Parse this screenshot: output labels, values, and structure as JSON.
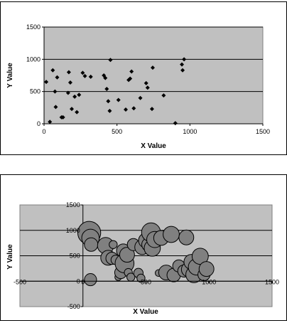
{
  "chart_data": [
    {
      "type": "scatter",
      "xlabel": "X Value",
      "ylabel": "Y Value",
      "xlim": [
        0,
        1500
      ],
      "ylim": [
        0,
        1500
      ],
      "x_ticks": [
        "0",
        "500",
        "1000",
        "1500"
      ],
      "y_ticks": [
        "0",
        "500",
        "1000",
        "1500"
      ],
      "grid": "horizontal",
      "plot_background": "#c0c0c0",
      "marker": "diamond",
      "marker_color": "#000000",
      "series": [
        {
          "points": [
            [
              15,
              650
            ],
            [
              40,
              30
            ],
            [
              60,
              830
            ],
            [
              75,
              500
            ],
            [
              80,
              260
            ],
            [
              90,
              720
            ],
            [
              120,
              100
            ],
            [
              130,
              100
            ],
            [
              165,
              480
            ],
            [
              170,
              800
            ],
            [
              180,
              640
            ],
            [
              190,
              230
            ],
            [
              210,
              420
            ],
            [
              225,
              180
            ],
            [
              240,
              450
            ],
            [
              265,
              790
            ],
            [
              280,
              740
            ],
            [
              320,
              730
            ],
            [
              410,
              750
            ],
            [
              420,
              710
            ],
            [
              430,
              540
            ],
            [
              440,
              350
            ],
            [
              450,
              200
            ],
            [
              455,
              990
            ],
            [
              510,
              370
            ],
            [
              560,
              220
            ],
            [
              580,
              680
            ],
            [
              590,
              700
            ],
            [
              600,
              810
            ],
            [
              615,
              240
            ],
            [
              660,
              400
            ],
            [
              700,
              630
            ],
            [
              710,
              560
            ],
            [
              740,
              230
            ],
            [
              745,
              870
            ],
            [
              820,
              440
            ],
            [
              900,
              10
            ],
            [
              945,
              920
            ],
            [
              950,
              830
            ],
            [
              960,
              1000
            ]
          ]
        }
      ]
    },
    {
      "type": "bubble",
      "xlabel": "X Value",
      "ylabel": "Y Value",
      "xlim": [
        -500,
        1500
      ],
      "ylim": [
        -500,
        1500
      ],
      "x_ticks": [
        "-500",
        "0",
        "500",
        "1000",
        "1500"
      ],
      "y_ticks": [
        "-500",
        "0",
        "500",
        "1000",
        "1500"
      ],
      "grid": "horizontal",
      "plot_background": "#c0c0c0",
      "bubble_color": "#808080",
      "series": [
        {
          "points": [
            [
              50,
              950,
              1.7
            ],
            [
              60,
              850,
              1.3
            ],
            [
              65,
              720,
              1.0
            ],
            [
              60,
              30,
              0.9
            ],
            [
              180,
              700,
              1.2
            ],
            [
              200,
              460,
              1.1
            ],
            [
              230,
              450,
              0.9
            ],
            [
              240,
              720,
              0.6
            ],
            [
              260,
              420,
              0.7
            ],
            [
              280,
              80,
              0.5
            ],
            [
              300,
              170,
              0.9
            ],
            [
              320,
              600,
              1.0
            ],
            [
              330,
              350,
              1.4
            ],
            [
              350,
              520,
              1.1
            ],
            [
              360,
              170,
              0.6
            ],
            [
              380,
              80,
              0.6
            ],
            [
              400,
              720,
              0.9
            ],
            [
              440,
              160,
              0.7
            ],
            [
              460,
              60,
              0.6
            ],
            [
              470,
              670,
              1.1
            ],
            [
              500,
              800,
              1.1
            ],
            [
              520,
              720,
              1.0
            ],
            [
              540,
              960,
              1.4
            ],
            [
              550,
              650,
              1.2
            ],
            [
              570,
              820,
              1.2
            ],
            [
              600,
              160,
              0.5
            ],
            [
              620,
              850,
              1.1
            ],
            [
              660,
              170,
              1.1
            ],
            [
              700,
              920,
              1.2
            ],
            [
              720,
              120,
              1.0
            ],
            [
              760,
              300,
              0.9
            ],
            [
              800,
              200,
              0.9
            ],
            [
              820,
              860,
              1.1
            ],
            [
              840,
              230,
              1.1
            ],
            [
              860,
              380,
              1.1
            ],
            [
              880,
              130,
              1.2
            ],
            [
              900,
              280,
              1.2
            ],
            [
              930,
              490,
              1.2
            ],
            [
              960,
              130,
              0.9
            ],
            [
              980,
              240,
              1.1
            ]
          ]
        }
      ]
    }
  ]
}
